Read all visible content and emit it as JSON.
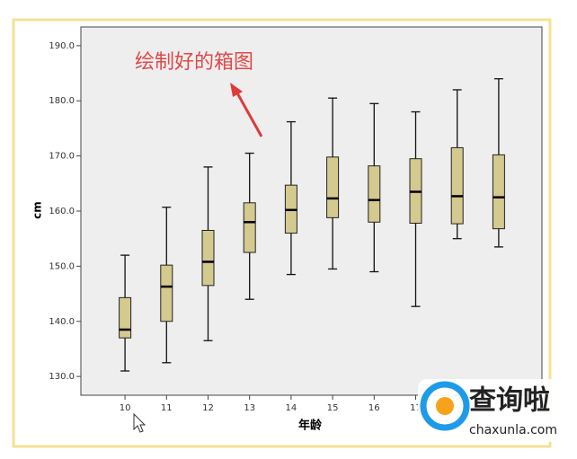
{
  "chart_data": {
    "type": "box",
    "annotation": "绘制好的箱图",
    "x_label": "年龄",
    "y_label": "cm",
    "categories": [
      "10",
      "11",
      "12",
      "13",
      "14",
      "15",
      "16",
      "17",
      null,
      null
    ],
    "whisker_low": [
      131,
      132.5,
      136.5,
      144,
      148.5,
      149.5,
      149,
      142.7,
      155,
      153.5
    ],
    "q1": [
      137,
      140,
      146.5,
      152.5,
      156,
      158.8,
      158,
      157.8,
      157.7,
      156.8
    ],
    "median": [
      138.5,
      146.3,
      150.8,
      158,
      160.2,
      162.3,
      162,
      163.5,
      162.7,
      162.5
    ],
    "q3": [
      144.3,
      150.2,
      156.5,
      161.5,
      164.7,
      169.8,
      168.2,
      169.5,
      171.5,
      170.2
    ],
    "whisker_high": [
      152,
      160.7,
      168,
      170.5,
      176.2,
      180.5,
      179.5,
      178,
      182,
      184
    ],
    "color": "#d4c98f",
    "ylim": [
      126.6,
      193.4
    ],
    "yticks": [
      {
        "value": 130,
        "label": "130.0"
      },
      {
        "value": 140,
        "label": "140.0"
      },
      {
        "value": 150,
        "label": "150.0"
      },
      {
        "value": 160,
        "label": "160.0"
      },
      {
        "value": 170,
        "label": "170.0"
      },
      {
        "value": 180,
        "label": "180.0"
      },
      {
        "value": 190,
        "label": "190.0"
      }
    ]
  },
  "watermark": {
    "name": "查询啦",
    "url": "chaxunla.com"
  }
}
